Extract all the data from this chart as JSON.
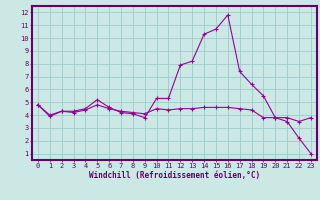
{
  "xlabel": "Windchill (Refroidissement éolien,°C)",
  "background_color": "#cce8e4",
  "grid_color": "#99cccc",
  "line_color": "#990099",
  "spine_color": "#660066",
  "xlim": [
    -0.5,
    23.5
  ],
  "ylim": [
    0.5,
    12.5
  ],
  "xticks": [
    0,
    1,
    2,
    3,
    4,
    5,
    6,
    7,
    8,
    9,
    10,
    11,
    12,
    13,
    14,
    15,
    16,
    17,
    18,
    19,
    20,
    21,
    22,
    23
  ],
  "yticks": [
    1,
    2,
    3,
    4,
    5,
    6,
    7,
    8,
    9,
    10,
    11,
    12
  ],
  "series1_x": [
    0,
    1,
    2,
    3,
    4,
    5,
    6,
    7,
    8,
    9,
    10,
    11,
    12,
    13,
    14,
    15,
    16,
    17,
    18,
    19,
    20,
    21,
    22,
    23
  ],
  "series1_y": [
    4.8,
    3.9,
    4.3,
    4.3,
    4.5,
    5.2,
    4.6,
    4.2,
    4.1,
    3.8,
    5.3,
    5.3,
    7.9,
    8.2,
    10.3,
    10.7,
    11.8,
    7.4,
    6.4,
    5.5,
    3.8,
    3.5,
    2.2,
    1.0
  ],
  "series2_x": [
    0,
    1,
    2,
    3,
    4,
    5,
    6,
    7,
    8,
    9,
    10,
    11,
    12,
    13,
    14,
    15,
    16,
    17,
    18,
    19,
    20,
    21,
    22,
    23
  ],
  "series2_y": [
    4.8,
    4.0,
    4.3,
    4.2,
    4.4,
    4.8,
    4.5,
    4.3,
    4.2,
    4.1,
    4.5,
    4.4,
    4.5,
    4.5,
    4.6,
    4.6,
    4.6,
    4.5,
    4.4,
    3.8,
    3.8,
    3.8,
    3.5,
    3.8
  ],
  "tick_fontsize": 5.0,
  "xlabel_fontsize": 5.5,
  "spine_linewidth": 1.5
}
